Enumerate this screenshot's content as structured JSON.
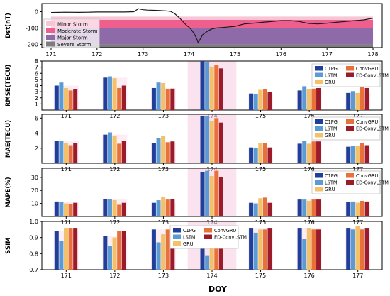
{
  "xlabel": "DOY",
  "colors": {
    "Minor Storm": "#f7c6d6",
    "Moderate Storm": "#ef5f8e",
    "Major Storm": "#8e6aa8",
    "Severe Storm": "#7d7d7d",
    "C1PG": "#1f3f9a",
    "LSTM": "#5b9bd5",
    "GRU": "#f2c16a",
    "ConvGRU": "#e8703a",
    "ED-ConvLSTM": "#9b1b2a",
    "highlight": "#f5cce0",
    "dst_line": "#1a1a1a"
  },
  "chart_data": [
    {
      "type": "line",
      "ylabel": "Dst(nT)",
      "xlim": [
        170.8,
        178.2
      ],
      "ylim": [
        -220,
        50
      ],
      "xticks": [
        171,
        172,
        173,
        174,
        175,
        176,
        177,
        178
      ],
      "yticks": [
        0,
        -100,
        -200
      ],
      "bands": [
        {
          "name": "Minor Storm",
          "range": [
            -50,
            -30
          ]
        },
        {
          "name": "Moderate Storm",
          "range": [
            -100,
            -50
          ]
        },
        {
          "name": "Major Storm",
          "range": [
            -200,
            -100
          ]
        },
        {
          "name": "Severe Storm",
          "range": [
            -220,
            -200
          ]
        }
      ],
      "legend": [
        "Minor Storm",
        "Moderate Storm",
        "Major Storm",
        "Severe Storm"
      ],
      "legend_position": "lower-left",
      "x": [
        171.0,
        171.3,
        171.6,
        171.8,
        172.0,
        172.3,
        172.6,
        172.8,
        172.9,
        173.0,
        173.1,
        173.3,
        173.5,
        173.6,
        173.7,
        173.8,
        173.85,
        173.9,
        173.95,
        174.0,
        174.05,
        174.1,
        174.15,
        174.2,
        174.3,
        174.4,
        174.5,
        174.6,
        174.8,
        175.0,
        175.2,
        175.4,
        175.6,
        175.8,
        176.0,
        176.2,
        176.4,
        176.6,
        176.8,
        177.0,
        177.2,
        177.4,
        177.6,
        177.8,
        178.0
      ],
      "values": [
        -5,
        -3,
        -4,
        -3,
        -2,
        -2,
        -2,
        0,
        18,
        12,
        10,
        8,
        5,
        2,
        -15,
        -40,
        -55,
        -70,
        -85,
        -95,
        -110,
        -130,
        -155,
        -190,
        -140,
        -120,
        -105,
        -100,
        -95,
        -90,
        -75,
        -70,
        -65,
        -60,
        -55,
        -55,
        -60,
        -72,
        -75,
        -70,
        -65,
        -60,
        -55,
        -50,
        -40
      ]
    },
    {
      "type": "bar",
      "ylabel": "RMSE(TECU)",
      "categories": [
        "171",
        "172",
        "173",
        "174",
        "175",
        "176",
        "177"
      ],
      "ylim": [
        0,
        8
      ],
      "yticks": [
        1,
        2,
        3,
        4,
        5,
        6,
        7,
        8
      ],
      "highlight": "174",
      "legend_position": "top-right",
      "series": [
        {
          "name": "C1PG",
          "values": [
            4.0,
            5.3,
            3.6,
            8.0,
            2.7,
            3.2,
            2.8
          ]
        },
        {
          "name": "LSTM",
          "values": [
            4.5,
            5.5,
            4.5,
            7.8,
            2.6,
            3.9,
            3.1
          ]
        },
        {
          "name": "GRU",
          "values": [
            3.6,
            5.2,
            4.4,
            7.1,
            3.3,
            3.4,
            2.8
          ]
        },
        {
          "name": "ConvGRU",
          "values": [
            3.2,
            3.6,
            3.4,
            7.3,
            3.4,
            3.5,
            3.8
          ]
        },
        {
          "name": "ED-ConvLSTM",
          "values": [
            3.4,
            4.0,
            3.5,
            6.8,
            2.9,
            3.6,
            3.6
          ]
        }
      ]
    },
    {
      "type": "bar",
      "ylabel": "MAE(TECU)",
      "categories": [
        "171",
        "172",
        "173",
        "174",
        "175",
        "176",
        "177"
      ],
      "ylim": [
        0,
        6.5
      ],
      "yticks": [
        2,
        4,
        6
      ],
      "highlight": "174",
      "legend_position": "top-right",
      "series": [
        {
          "name": "C1PG",
          "values": [
            3.0,
            3.8,
            2.7,
            6.3,
            2.1,
            2.6,
            2.2
          ]
        },
        {
          "name": "LSTM",
          "values": [
            3.0,
            4.1,
            3.3,
            6.3,
            2.0,
            3.0,
            2.3
          ]
        },
        {
          "name": "GRU",
          "values": [
            2.7,
            3.6,
            3.6,
            5.6,
            2.7,
            2.6,
            2.3
          ]
        },
        {
          "name": "ConvGRU",
          "values": [
            2.4,
            2.6,
            2.8,
            6.0,
            2.7,
            2.9,
            2.7
          ]
        },
        {
          "name": "ED-ConvLSTM",
          "values": [
            2.7,
            3.0,
            2.9,
            5.4,
            2.1,
            2.9,
            2.4
          ]
        }
      ]
    },
    {
      "type": "bar",
      "ylabel": "MAPE(%)",
      "categories": [
        "171",
        "172",
        "173",
        "174",
        "175",
        "176",
        "177"
      ],
      "ylim": [
        0,
        37
      ],
      "yticks": [
        10,
        20,
        30
      ],
      "highlight": "174",
      "legend_position": "top-right",
      "series": [
        {
          "name": "C1PG",
          "values": [
            11.5,
            13.5,
            10.5,
            34.0,
            10.5,
            13.0,
            11.0
          ]
        },
        {
          "name": "LSTM",
          "values": [
            11.0,
            13.5,
            12.5,
            35.0,
            10.0,
            13.0,
            11.5
          ]
        },
        {
          "name": "GRU",
          "values": [
            10.0,
            12.5,
            15.0,
            31.0,
            14.0,
            12.0,
            10.5
          ]
        },
        {
          "name": "ConvGRU",
          "values": [
            9.5,
            9.0,
            13.0,
            35.0,
            14.5,
            13.0,
            12.0
          ]
        },
        {
          "name": "ED-ConvLSTM",
          "values": [
            10.5,
            10.5,
            13.5,
            30.0,
            10.5,
            13.0,
            11.5
          ]
        }
      ]
    },
    {
      "type": "bar",
      "ylabel": "SSIM",
      "categories": [
        "171",
        "172",
        "173",
        "174",
        "175",
        "176",
        "177"
      ],
      "ylim": [
        0.7,
        1.0
      ],
      "yticks": [
        0.7,
        0.8,
        0.9,
        1.0
      ],
      "highlight": "174",
      "legend_position": "top-center",
      "series": [
        {
          "name": "C1PG",
          "values": [
            0.94,
            0.91,
            0.95,
            0.84,
            0.96,
            0.96,
            0.96
          ]
        },
        {
          "name": "LSTM",
          "values": [
            0.88,
            0.85,
            0.87,
            0.79,
            0.93,
            0.89,
            0.95
          ]
        },
        {
          "name": "GRU",
          "values": [
            0.96,
            0.9,
            0.92,
            0.85,
            0.95,
            0.96,
            0.97
          ]
        },
        {
          "name": "ConvGRU",
          "values": [
            0.96,
            0.94,
            0.95,
            0.86,
            0.95,
            0.95,
            0.95
          ]
        },
        {
          "name": "ED-ConvLSTM",
          "values": [
            0.96,
            0.94,
            0.95,
            0.87,
            0.96,
            0.95,
            0.96
          ]
        }
      ]
    }
  ]
}
